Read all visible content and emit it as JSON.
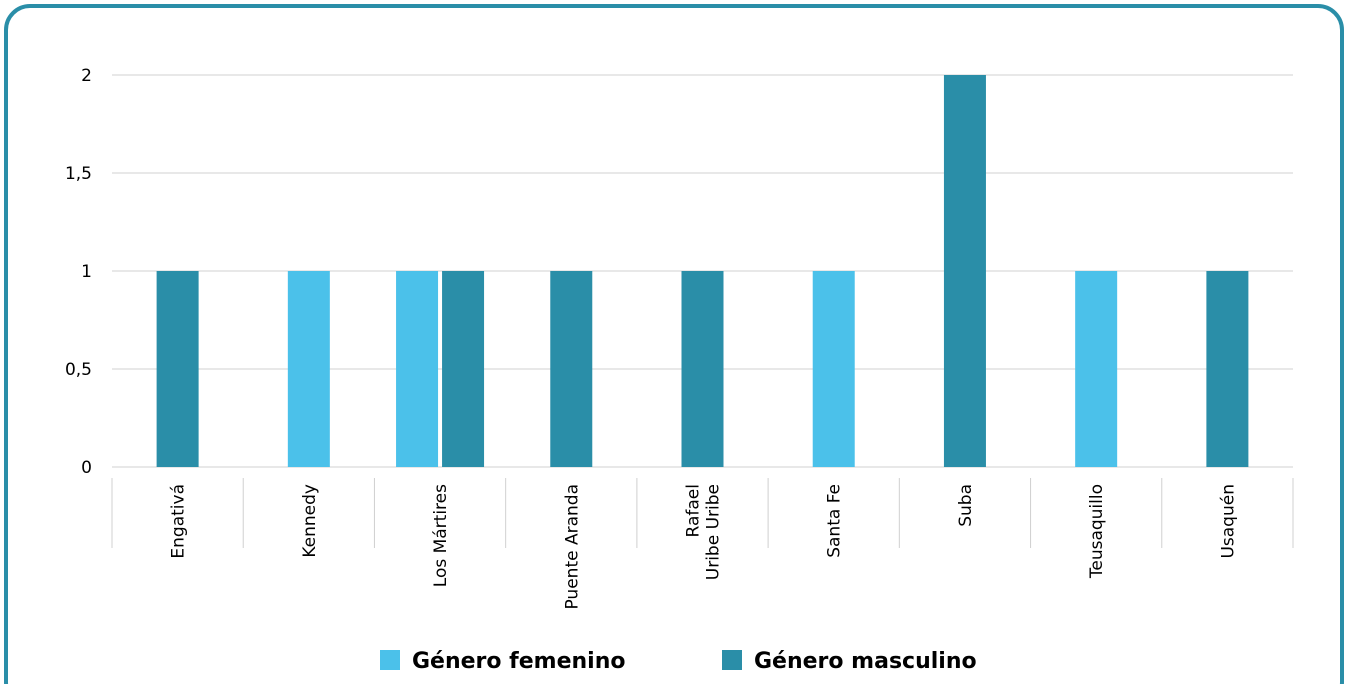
{
  "chart_data": {
    "type": "bar",
    "categories": [
      "Engativá",
      "Kennedy",
      "Los Mártires",
      "Puente Aranda",
      "Rafael\nUribe Uribe",
      "Santa Fe",
      "Suba",
      "Teusaquillo",
      "Usaquén"
    ],
    "series": [
      {
        "name": "Género femenino",
        "color": "#4bc1ea",
        "values": [
          null,
          1,
          1,
          null,
          null,
          1,
          null,
          1,
          null
        ]
      },
      {
        "name": "Género masculino",
        "color": "#2a8ea8",
        "values": [
          1,
          null,
          1,
          1,
          1,
          null,
          2,
          null,
          1
        ]
      }
    ],
    "ylim": [
      0,
      2
    ],
    "yticks": [
      0,
      {
        "value": 0.5,
        "label": "0,5"
      },
      1,
      {
        "value": 1.5,
        "label": "1,5"
      },
      2
    ],
    "grid": true,
    "legend": "bottom"
  }
}
